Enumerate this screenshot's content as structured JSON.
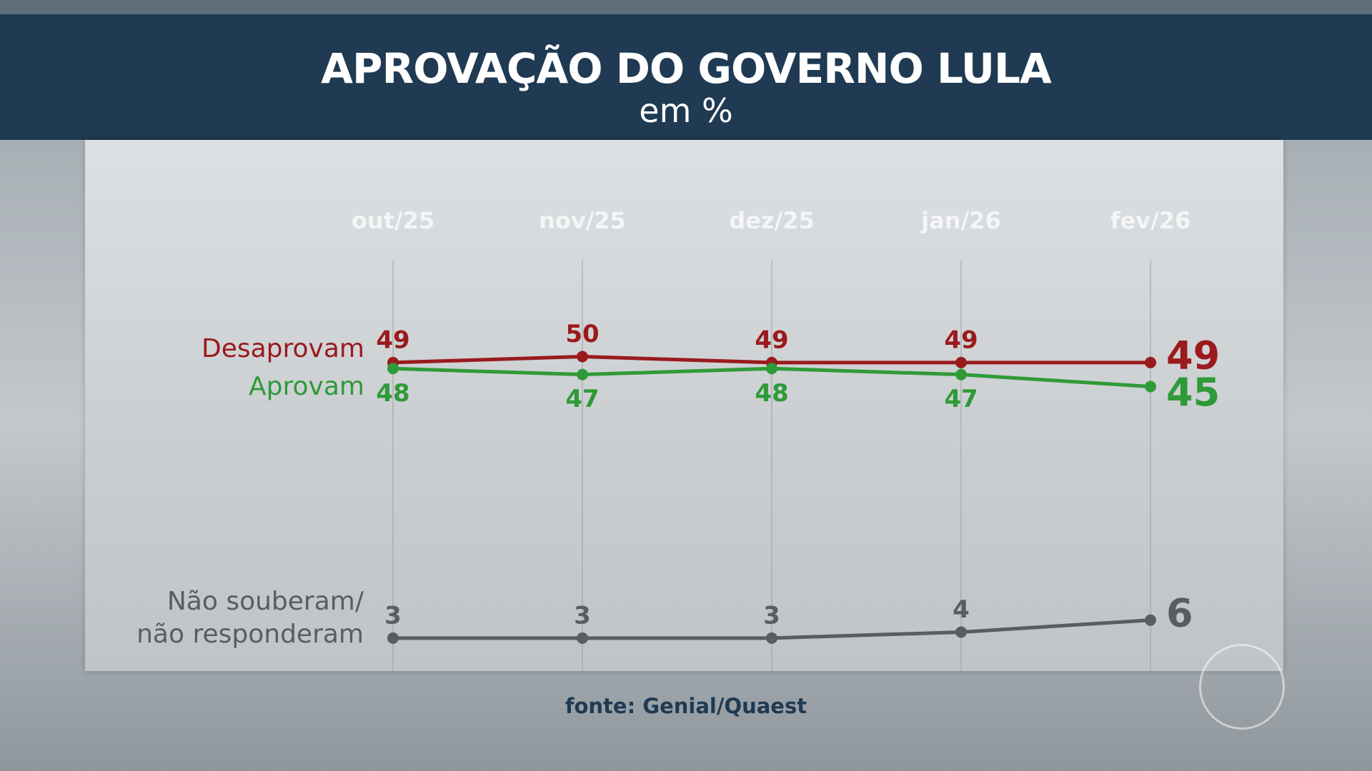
{
  "chart_data": {
    "type": "line",
    "title": "APROVAÇÃO DO GOVERNO LULA",
    "subtitle": "em %",
    "source": "fonte: Genial/Quaest",
    "categories": [
      "out/25",
      "nov/25",
      "dez/25",
      "jan/26",
      "fev/26"
    ],
    "series": [
      {
        "name": "Desaprovam",
        "color": "#9a1a1d",
        "values": [
          49,
          50,
          49,
          49,
          49
        ]
      },
      {
        "name": "Aprovam",
        "color": "#2f9a38",
        "values": [
          48,
          47,
          48,
          47,
          45
        ]
      },
      {
        "name": "Não souberam/\nnão responderam",
        "color": "#5a5d60",
        "values": [
          3,
          3,
          3,
          4,
          6
        ]
      }
    ]
  }
}
